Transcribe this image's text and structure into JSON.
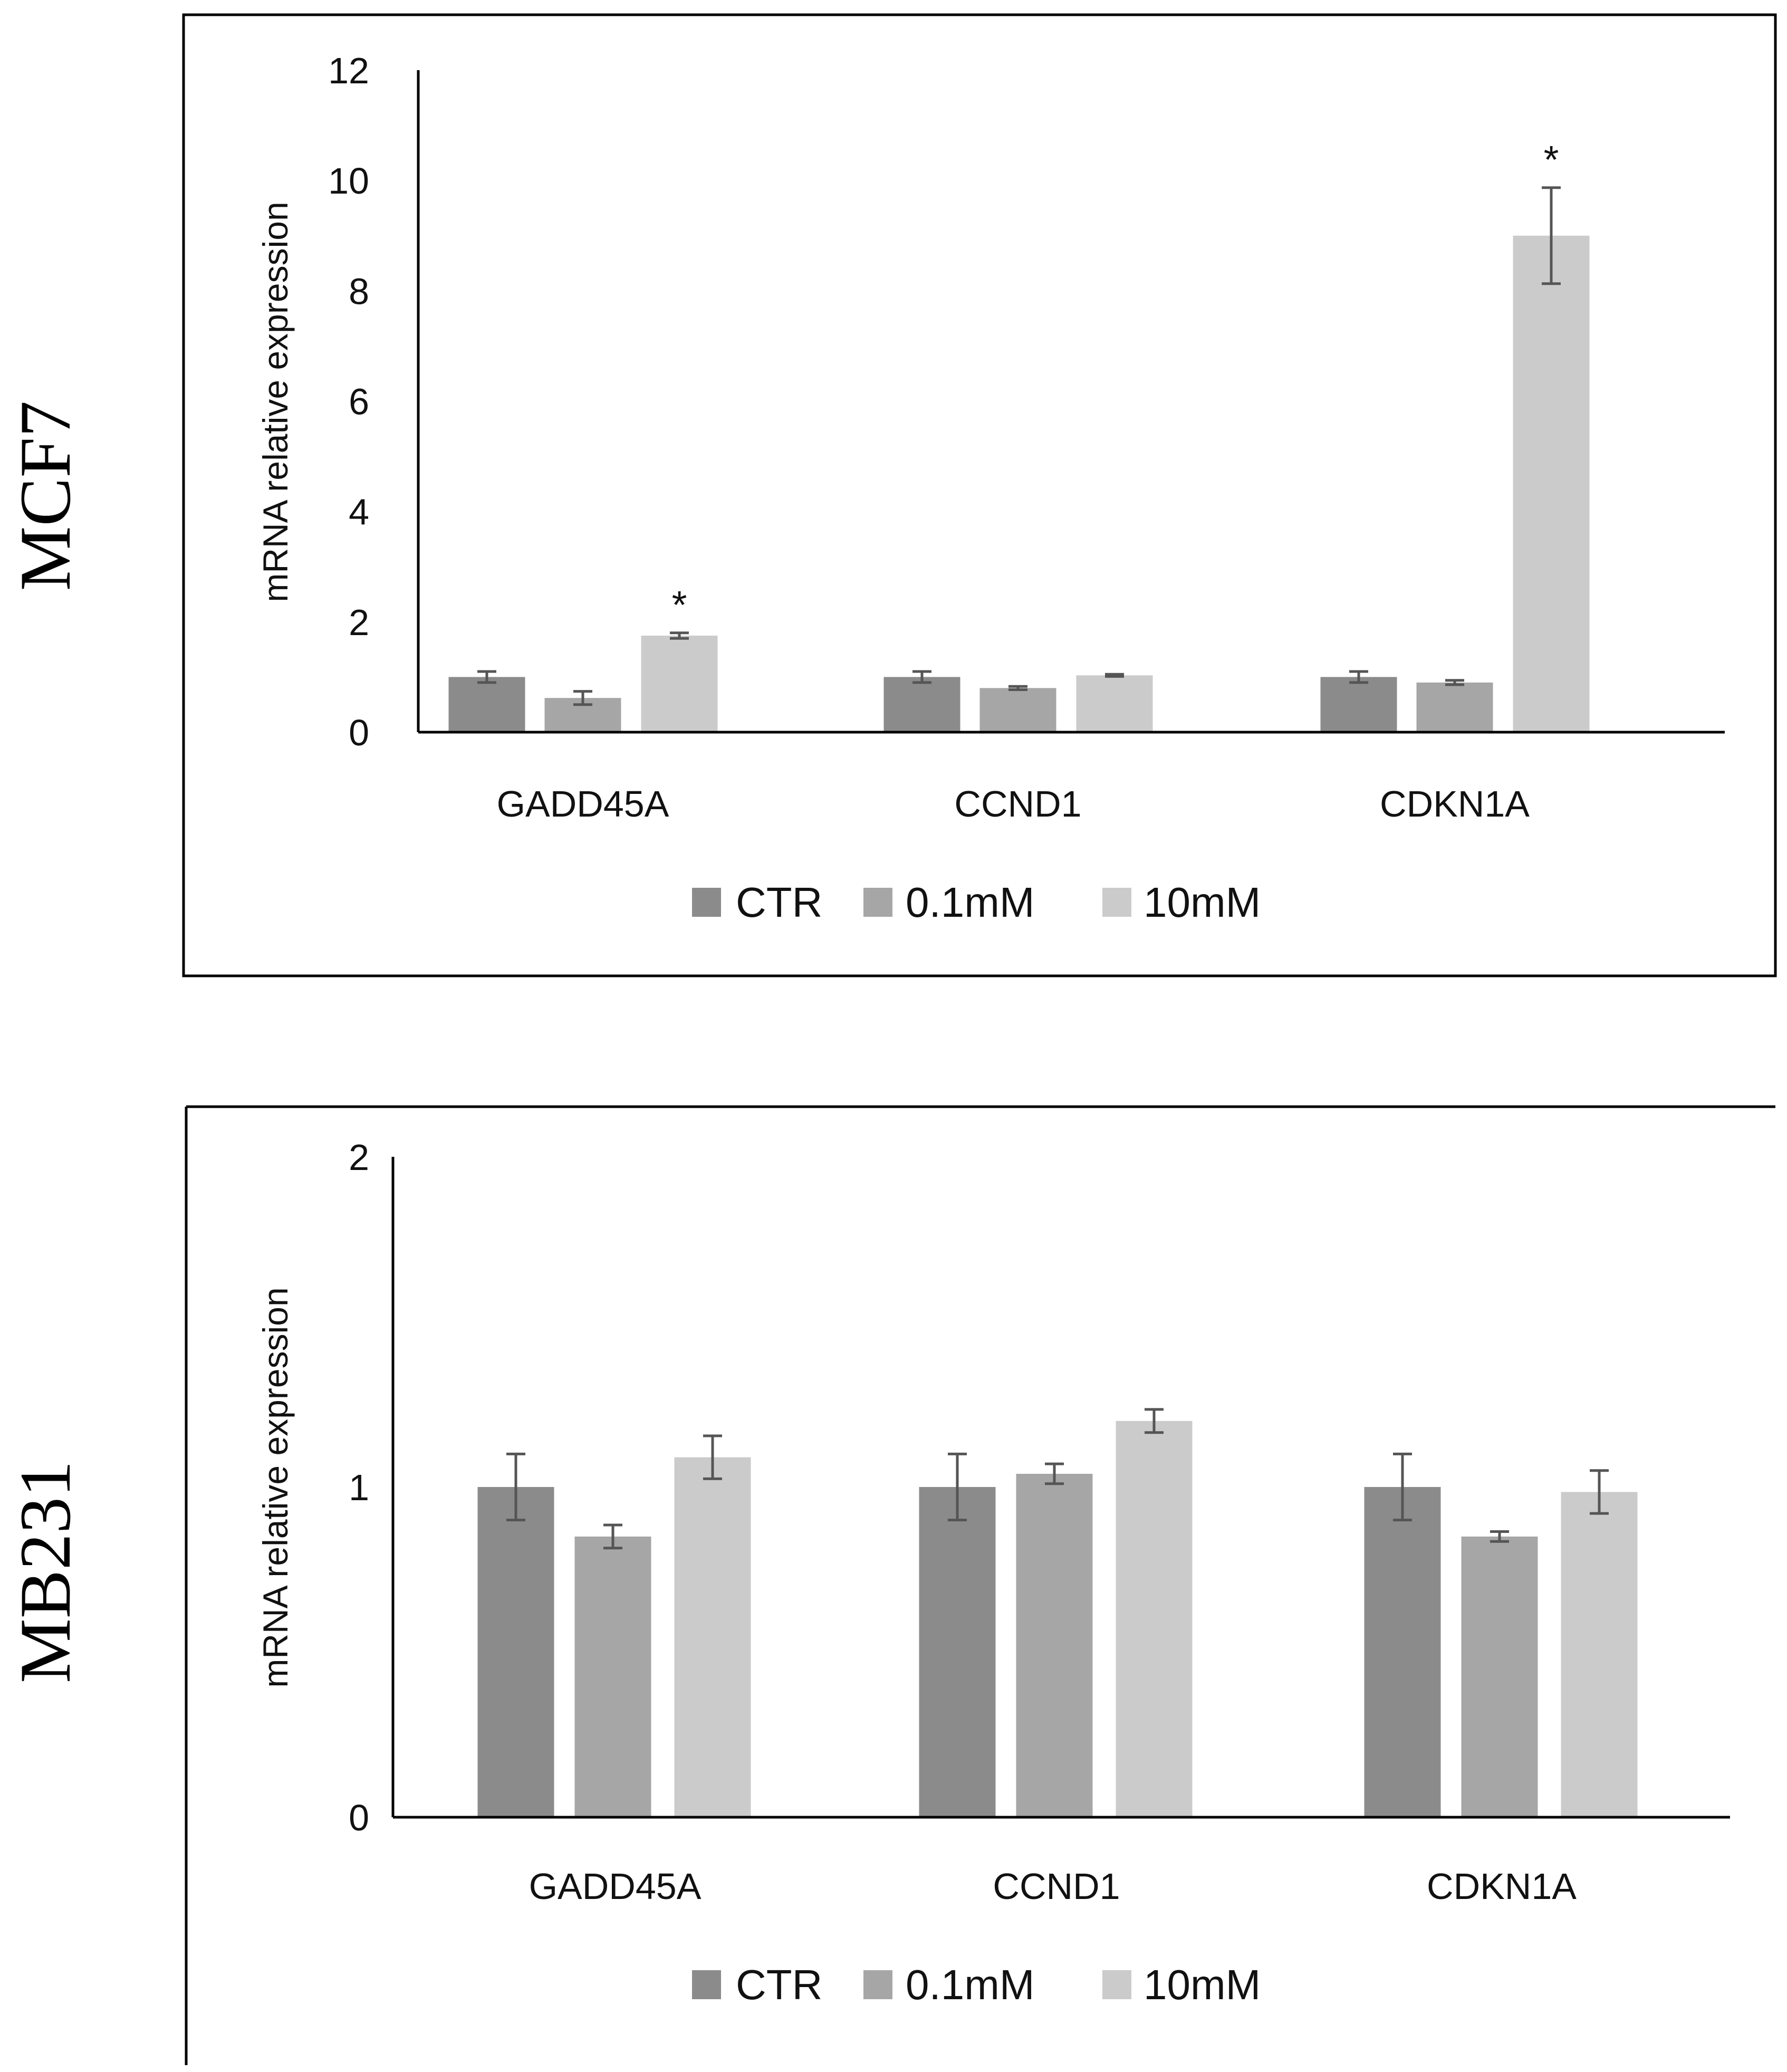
{
  "chart_data": [
    {
      "type": "bar",
      "panel_label": "MCF7",
      "categories": [
        "GADD45A",
        "CCND1",
        "CDKN1A"
      ],
      "ylabel": "mRNA relative expression",
      "ylim": [
        0,
        12
      ],
      "yticks": [
        "0",
        "2",
        "4",
        "6",
        "8",
        "10",
        "12"
      ],
      "series": [
        {
          "name": "CTR",
          "color": "#8b8b8b",
          "values": [
            1.0,
            1.0,
            1.0
          ],
          "errors": [
            0.1,
            0.1,
            0.1
          ]
        },
        {
          "name": "0.1mM",
          "color": "#a6a6a6",
          "values": [
            0.62,
            0.8,
            0.9
          ],
          "errors": [
            0.12,
            0.03,
            0.04
          ]
        },
        {
          "name": "10mM",
          "color": "#cbcbcb",
          "values": [
            1.75,
            1.03,
            9.0
          ],
          "errors": [
            0.05,
            0.02,
            0.87
          ]
        }
      ],
      "annotations": [
        {
          "series": 2,
          "category": 0,
          "text": "*"
        },
        {
          "series": 2,
          "category": 2,
          "text": "*"
        }
      ],
      "legend": "bottom"
    },
    {
      "type": "bar",
      "panel_label": "MB231",
      "categories": [
        "GADD45A",
        "CCND1",
        "CDKN1A"
      ],
      "ylabel": "mRNA relative expression",
      "ylim": [
        0,
        2
      ],
      "yticks": [
        "0",
        "1",
        "2"
      ],
      "series": [
        {
          "name": "CTR",
          "color": "#8b8b8b",
          "values": [
            1.0,
            1.0,
            1.0
          ],
          "errors": [
            0.1,
            0.1,
            0.1
          ]
        },
        {
          "name": "0.1mM",
          "color": "#a6a6a6",
          "values": [
            0.85,
            1.04,
            0.85
          ],
          "errors": [
            0.035,
            0.03,
            0.015
          ]
        },
        {
          "name": "10mM",
          "color": "#cbcbcb",
          "values": [
            1.09,
            1.2,
            0.985
          ],
          "errors": [
            0.065,
            0.035,
            0.065
          ]
        }
      ],
      "annotations": [],
      "legend": "bottom"
    }
  ]
}
